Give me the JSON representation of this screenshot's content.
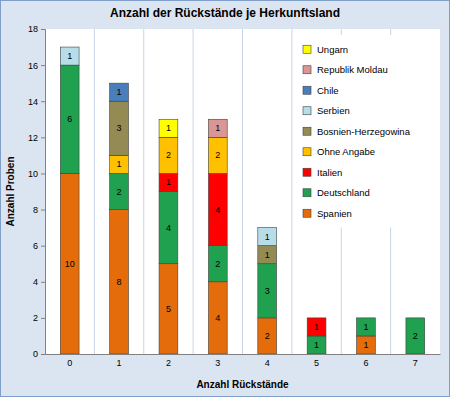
{
  "chart_data": {
    "type": "bar",
    "title": "Anzahl der Rückstände je Herkunftsland",
    "x_label": "Anzahl Rückstände",
    "y_label": "Anzahl Proben",
    "categories": [
      "0",
      "1",
      "2",
      "3",
      "4",
      "5",
      "6",
      "7"
    ],
    "stacked": true,
    "data_labels": true,
    "legend": "upper right",
    "ylim": [
      0,
      18
    ],
    "yticks": [
      0,
      2,
      4,
      6,
      8,
      10,
      12,
      14,
      16,
      18
    ],
    "series": [
      {
        "name": "Spanien",
        "color": "#e46c0a",
        "values": [
          10,
          8,
          5,
          4,
          2,
          0,
          1,
          0
        ]
      },
      {
        "name": "Deutschland",
        "color": "#1fa150",
        "values": [
          6,
          2,
          4,
          2,
          3,
          1,
          1,
          2
        ]
      },
      {
        "name": "Italien",
        "color": "#ff0000",
        "values": [
          0,
          0,
          1,
          4,
          0,
          1,
          0,
          0
        ]
      },
      {
        "name": "Ohne Angabe",
        "color": "#ffc000",
        "values": [
          0,
          1,
          2,
          2,
          0,
          0,
          0,
          0
        ]
      },
      {
        "name": "Bosnien-Herzegowina",
        "color": "#948a54",
        "values": [
          0,
          3,
          0,
          0,
          1,
          0,
          0,
          0
        ]
      },
      {
        "name": "Serbien",
        "color": "#b7dee8",
        "values": [
          1,
          0,
          0,
          0,
          1,
          0,
          0,
          0
        ]
      },
      {
        "name": "Chile",
        "color": "#4a7ebb",
        "values": [
          0,
          1,
          0,
          0,
          0,
          0,
          0,
          0
        ]
      },
      {
        "name": "Republik Moldau",
        "color": "#d99694",
        "values": [
          0,
          0,
          0,
          1,
          0,
          0,
          0,
          0
        ]
      },
      {
        "name": "Ungarn",
        "color": "#ffff00",
        "values": [
          0,
          0,
          1,
          0,
          0,
          0,
          0,
          0
        ]
      }
    ]
  }
}
